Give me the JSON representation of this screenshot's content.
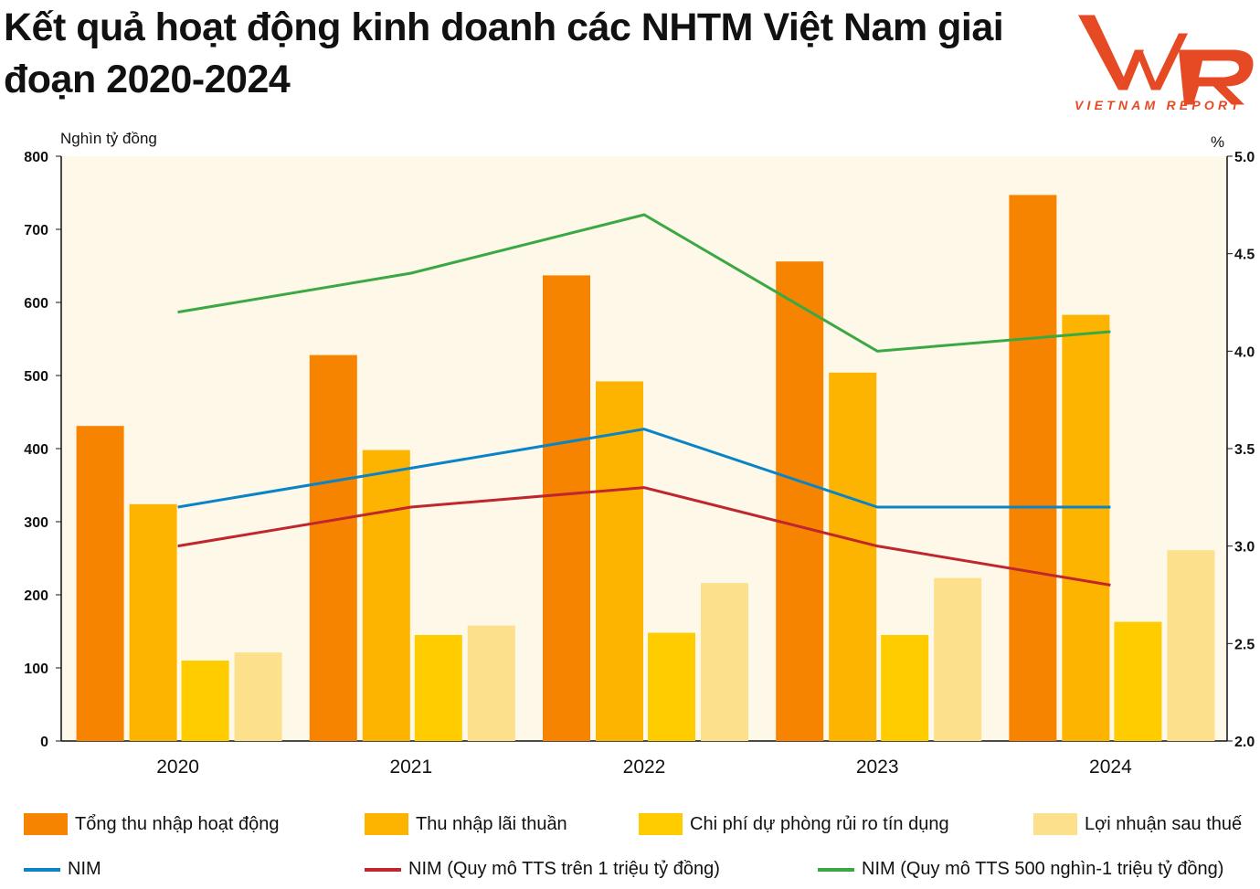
{
  "title": "Kết quả hoạt động kinh doanh các NHTM Việt Nam giai đoạn 2020-2024",
  "logo": {
    "mark": "VNR",
    "text": "VIETNAM REPORT"
  },
  "chart_data": {
    "type": "bar",
    "title": "Kết quả hoạt động kinh doanh các NHTM Việt Nam giai đoạn 2020-2024",
    "categories": [
      "2020",
      "2021",
      "2022",
      "2023",
      "2024"
    ],
    "ylabel": "Nghìn tỷ đồng",
    "ylim": [
      0,
      800
    ],
    "yticks": [
      "0",
      "100",
      "200",
      "300",
      "400",
      "500",
      "600",
      "700",
      "800"
    ],
    "y2label": "%",
    "y2lim": [
      2.0,
      5.0
    ],
    "y2ticks": [
      "2.0",
      "2.5",
      "3.0",
      "3.5",
      "4.0",
      "4.5",
      "5.0"
    ],
    "grid": false,
    "legend_position": "bottom",
    "series": [
      {
        "name": "Tổng thu nhập hoạt động",
        "type": "bar",
        "axis": "left",
        "color": "#f78400",
        "values": [
          431,
          528,
          637,
          656,
          747
        ]
      },
      {
        "name": "Thu nhập lãi thuần",
        "type": "bar",
        "axis": "left",
        "color": "#fdb400",
        "values": [
          324,
          398,
          492,
          504,
          583
        ]
      },
      {
        "name": "Chi phí dự phòng rủi ro tín dụng",
        "type": "bar",
        "axis": "left",
        "color": "#ffcc00",
        "values": [
          110,
          145,
          148,
          145,
          163
        ]
      },
      {
        "name": "Lợi nhuận sau thuế",
        "type": "bar",
        "axis": "left",
        "color": "#fde08c",
        "values": [
          121,
          158,
          216,
          223,
          261
        ]
      },
      {
        "name": "NIM",
        "type": "line",
        "axis": "right",
        "color": "#0a84c6",
        "values": [
          3.2,
          3.4,
          3.6,
          3.2,
          3.2
        ]
      },
      {
        "name": "NIM (Quy mô TTS trên 1 triệu tỷ đồng)",
        "type": "line",
        "axis": "right",
        "color": "#c0262d",
        "values": [
          3.0,
          3.2,
          3.3,
          3.0,
          2.8
        ]
      },
      {
        "name": "NIM (Quy mô TTS 500 nghìn-1 triệu tỷ đồng)",
        "type": "line",
        "axis": "right",
        "color": "#3aa944",
        "values": [
          4.2,
          4.4,
          4.7,
          4.0,
          4.1
        ]
      }
    ]
  }
}
